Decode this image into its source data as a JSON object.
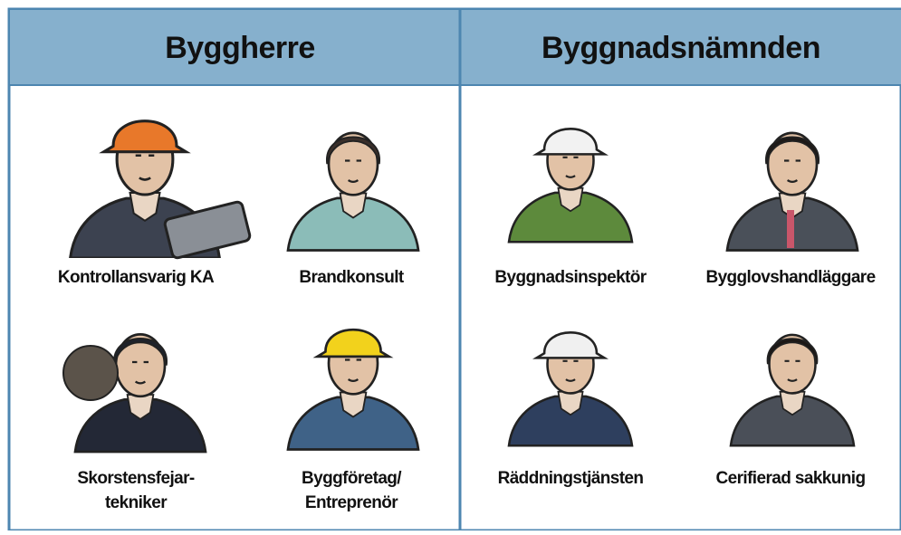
{
  "columns": [
    {
      "title": "Byggherre",
      "roles": [
        [
          "Kontrollansvarig KA"
        ],
        [
          "Brandkonsult"
        ],
        [
          "Skorstensfejar-",
          "tekniker"
        ],
        [
          "Byggföretag/",
          "Entreprenör"
        ]
      ]
    },
    {
      "title": "Byggnadsnämnden",
      "roles": [
        [
          "Byggnadsinspektör"
        ],
        [
          "Bygglovshandläggare"
        ],
        [
          "Räddningstjänsten"
        ],
        [
          "Cerifierad sakkunig"
        ]
      ]
    }
  ]
}
